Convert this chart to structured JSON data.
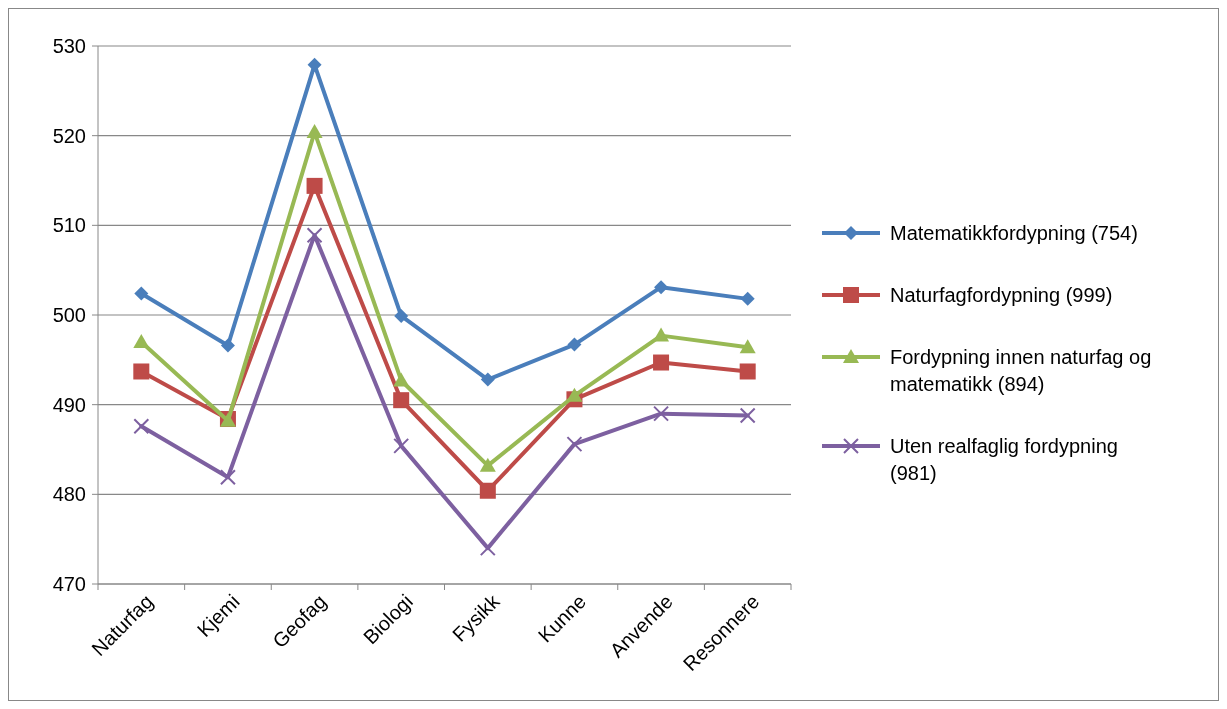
{
  "chart_data": {
    "type": "line",
    "categories": [
      "Naturfag",
      "Kjemi",
      "Geofag",
      "Biologi",
      "Fysikk",
      "Kunne",
      "Anvende",
      "Resonnere"
    ],
    "ylim": [
      470,
      530
    ],
    "yticks": [
      470,
      480,
      490,
      500,
      510,
      520,
      530
    ],
    "grid": "y",
    "legend": "right",
    "line_style": "solid",
    "series": [
      {
        "name": "Matematikkfordypning (754)",
        "color": "#4a7ebb",
        "marker": "diamond",
        "values": [
          502.4,
          496.6,
          527.9,
          499.9,
          492.8,
          496.7,
          503.1,
          501.8
        ]
      },
      {
        "name": "Naturfagfordypning (999)",
        "color": "#be4b48",
        "marker": "square",
        "values": [
          493.7,
          488.4,
          514.4,
          490.5,
          480.4,
          490.6,
          494.7,
          493.7
        ]
      },
      {
        "name": "Fordypning innen naturfag og matematikk (894)",
        "color": "#98b954",
        "marker": "triangle",
        "values": [
          497,
          488.2,
          520.4,
          492.7,
          483.2,
          491,
          497.7,
          496.4
        ]
      },
      {
        "name": "Uten realfaglig fordypning (981)",
        "color": "#7d60a0",
        "marker": "cross",
        "values": [
          487.6,
          481.9,
          508.9,
          485.4,
          474,
          485.6,
          489,
          488.8
        ]
      }
    ]
  }
}
